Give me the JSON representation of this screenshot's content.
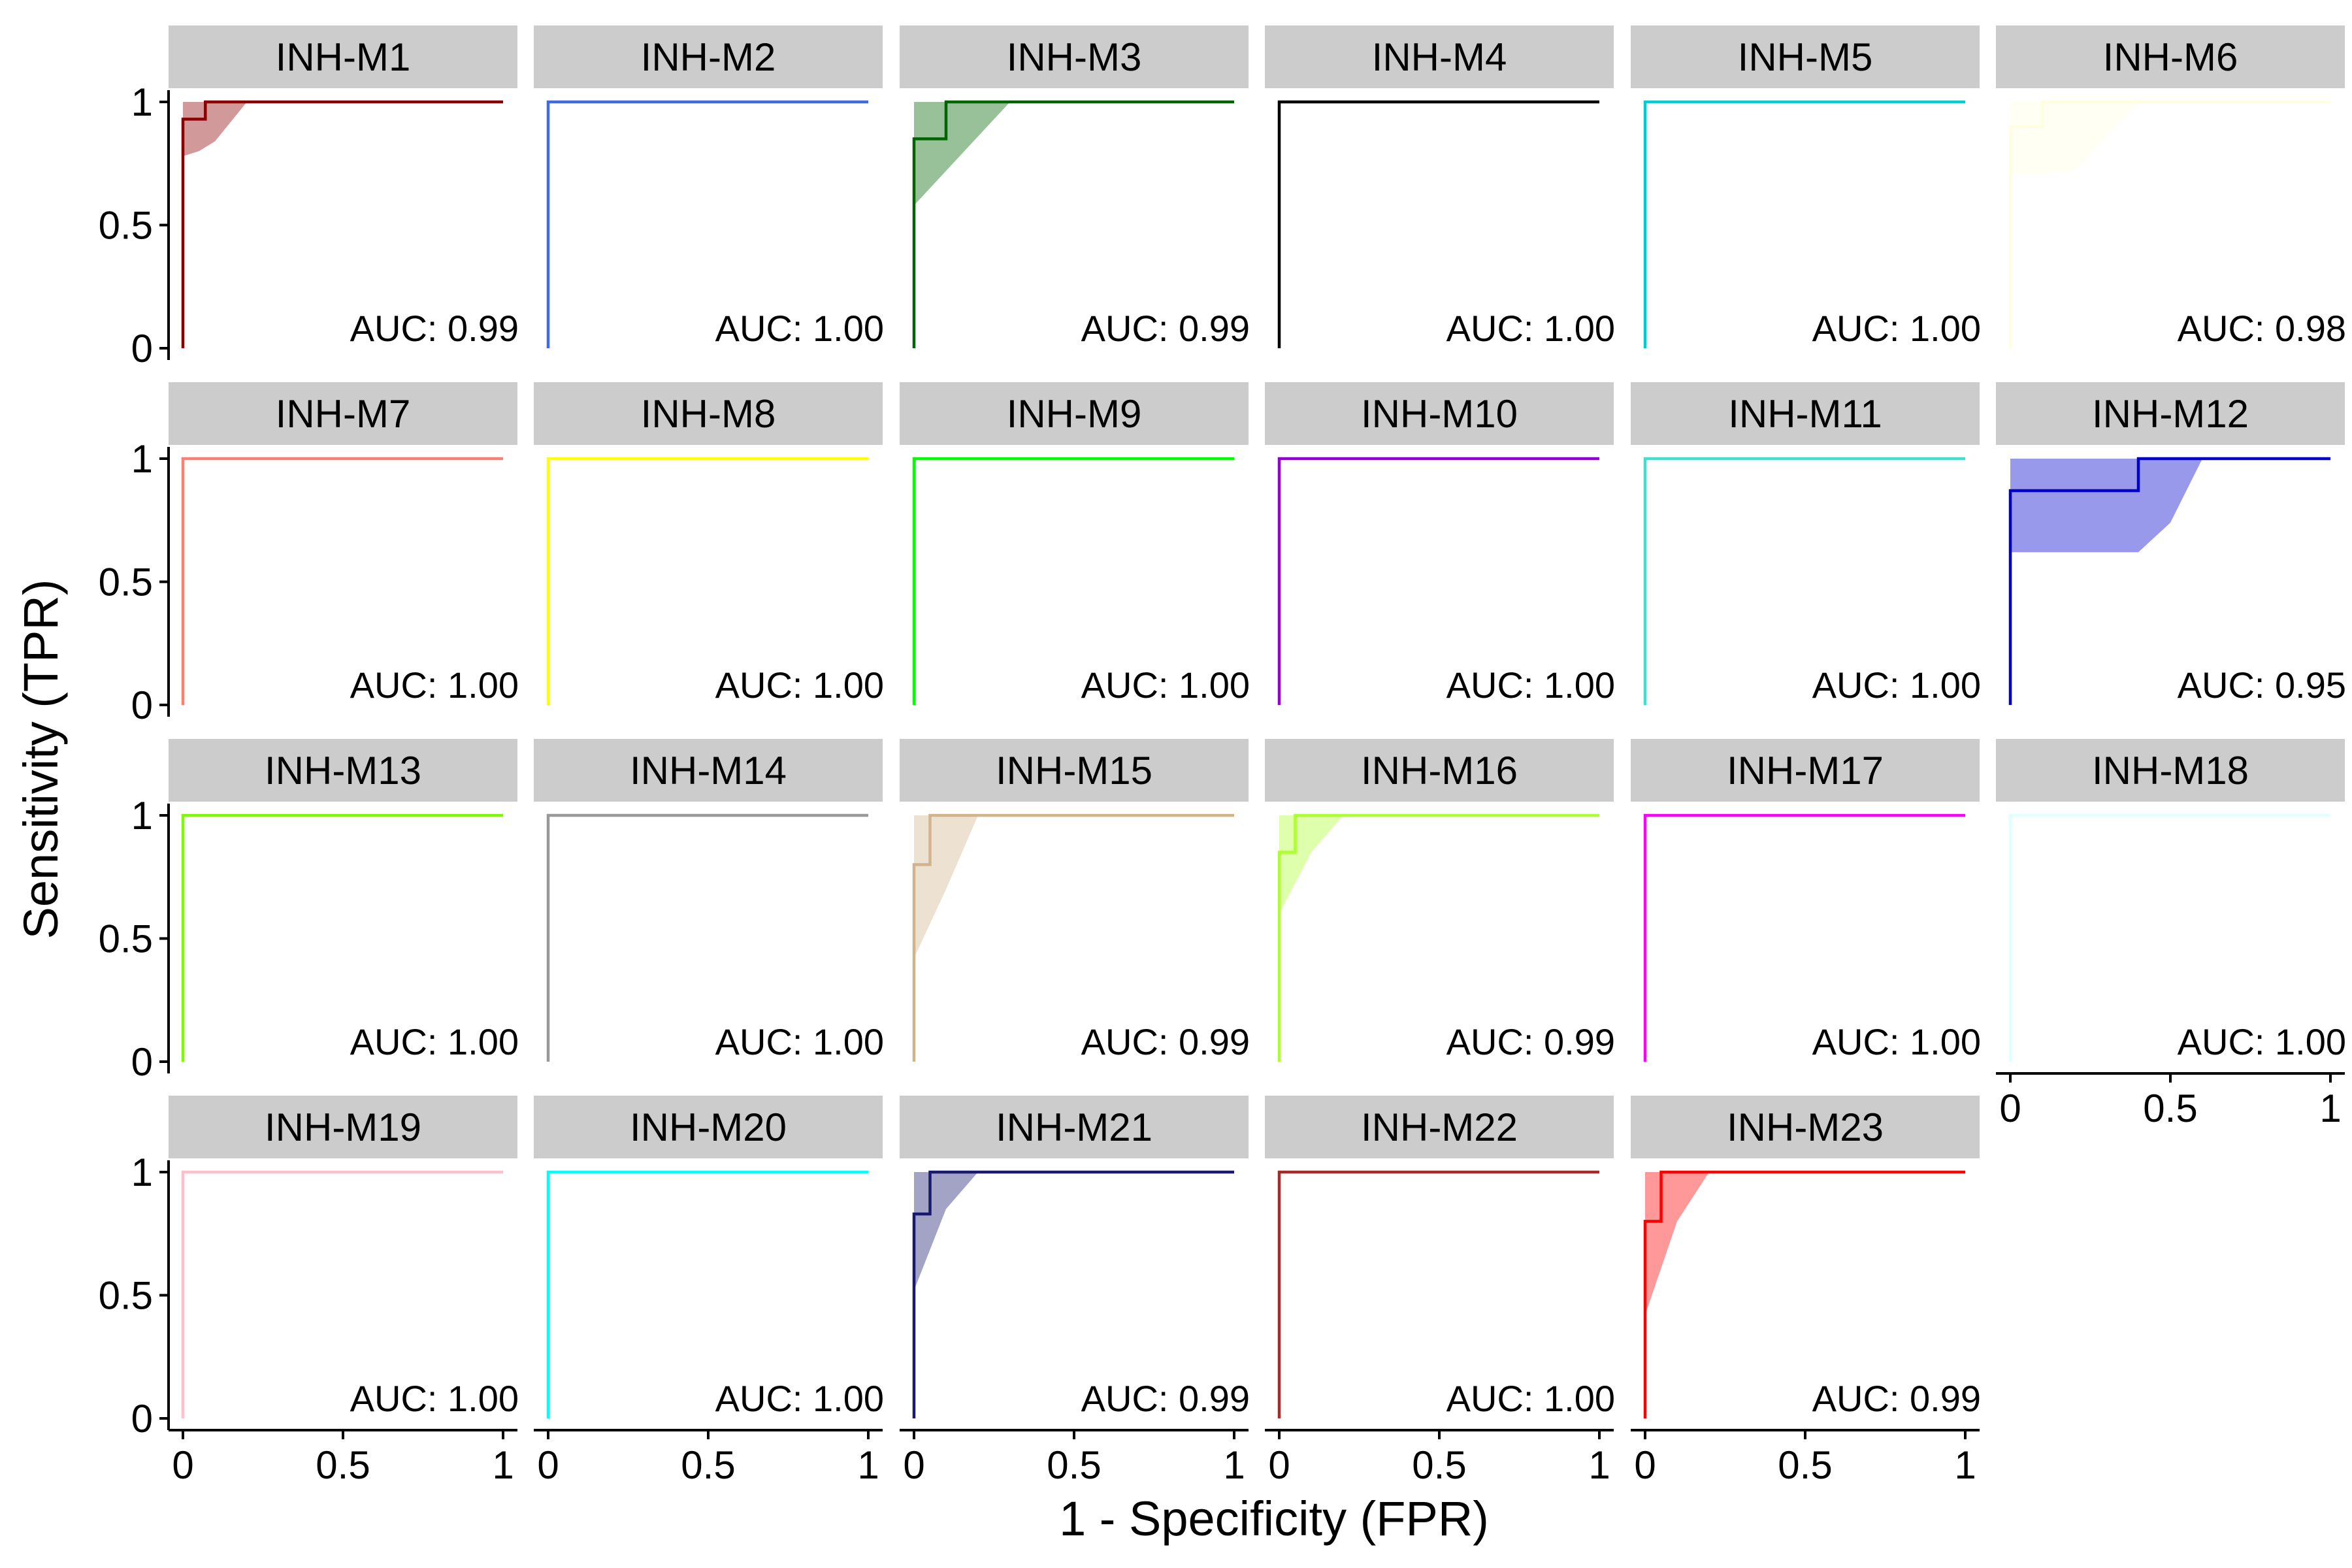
{
  "chart_data": {
    "type": "line",
    "xlabel": "1 - Specificity (FPR)",
    "ylabel": "Sensitivity (TPR)",
    "xlim": [
      0,
      1
    ],
    "ylim": [
      0,
      1
    ],
    "x_ticks": [
      "0",
      "0.5",
      "1"
    ],
    "y_ticks": [
      "0",
      "0.5",
      "1"
    ],
    "auc_prefix": "AUC: ",
    "panels": [
      {
        "name": "INH-M1",
        "color": "#8B0000",
        "auc": "0.99",
        "roc": [
          [
            0,
            0
          ],
          [
            0,
            0.93
          ],
          [
            0.07,
            0.93
          ],
          [
            0.07,
            1
          ],
          [
            1,
            1
          ]
        ],
        "band_upper": [
          [
            0,
            1
          ],
          [
            1,
            1
          ]
        ],
        "band_lower": [
          [
            0,
            0.78
          ],
          [
            0.05,
            0.8
          ],
          [
            0.1,
            0.84
          ],
          [
            0.2,
            1
          ],
          [
            1,
            1
          ]
        ]
      },
      {
        "name": "INH-M2",
        "color": "#4169E1",
        "auc": "1.00",
        "roc": [
          [
            0,
            0
          ],
          [
            0,
            1
          ],
          [
            1,
            1
          ]
        ],
        "band_upper": [],
        "band_lower": []
      },
      {
        "name": "INH-M3",
        "color": "#006400",
        "auc": "0.99",
        "roc": [
          [
            0,
            0
          ],
          [
            0,
            0.85
          ],
          [
            0.1,
            0.85
          ],
          [
            0.1,
            1
          ],
          [
            1,
            1
          ]
        ],
        "band_upper": [
          [
            0,
            1
          ],
          [
            1,
            1
          ]
        ],
        "band_lower": [
          [
            0,
            0.58
          ],
          [
            0.3,
            1
          ],
          [
            1,
            1
          ]
        ]
      },
      {
        "name": "INH-M4",
        "color": "#000000",
        "auc": "1.00",
        "roc": [
          [
            0,
            0
          ],
          [
            0,
            1
          ],
          [
            1,
            1
          ]
        ],
        "band_upper": [],
        "band_lower": []
      },
      {
        "name": "INH-M5",
        "color": "#00CED1",
        "auc": "1.00",
        "roc": [
          [
            0,
            0
          ],
          [
            0,
            1
          ],
          [
            1,
            1
          ]
        ],
        "band_upper": [],
        "band_lower": []
      },
      {
        "name": "INH-M6",
        "color": "#FFFFE0",
        "auc": "0.98",
        "roc": [
          [
            0,
            0
          ],
          [
            0,
            0.9
          ],
          [
            0.1,
            0.9
          ],
          [
            0.1,
            1
          ],
          [
            1,
            1
          ]
        ],
        "band_upper": [
          [
            0,
            1
          ],
          [
            1,
            1
          ]
        ],
        "band_lower": [
          [
            0,
            0.7
          ],
          [
            0.2,
            0.72
          ],
          [
            0.4,
            1
          ],
          [
            1,
            1
          ]
        ]
      },
      {
        "name": "INH-M7",
        "color": "#FA8072",
        "auc": "1.00",
        "roc": [
          [
            0,
            0
          ],
          [
            0,
            1
          ],
          [
            1,
            1
          ]
        ],
        "band_upper": [],
        "band_lower": []
      },
      {
        "name": "INH-M8",
        "color": "#FFFF00",
        "auc": "1.00",
        "roc": [
          [
            0,
            0
          ],
          [
            0,
            1
          ],
          [
            1,
            1
          ]
        ],
        "band_upper": [],
        "band_lower": []
      },
      {
        "name": "INH-M9",
        "color": "#00FF00",
        "auc": "1.00",
        "roc": [
          [
            0,
            0
          ],
          [
            0,
            1
          ],
          [
            1,
            1
          ]
        ],
        "band_upper": [],
        "band_lower": []
      },
      {
        "name": "INH-M10",
        "color": "#9400D3",
        "auc": "1.00",
        "roc": [
          [
            0,
            0
          ],
          [
            0,
            1
          ],
          [
            1,
            1
          ]
        ],
        "band_upper": [],
        "band_lower": []
      },
      {
        "name": "INH-M11",
        "color": "#40E0D0",
        "auc": "1.00",
        "roc": [
          [
            0,
            0
          ],
          [
            0,
            1
          ],
          [
            1,
            1
          ]
        ],
        "band_upper": [],
        "band_lower": []
      },
      {
        "name": "INH-M12",
        "color": "#0000CD",
        "auc": "0.95",
        "roc": [
          [
            0,
            0
          ],
          [
            0,
            0.87
          ],
          [
            0.4,
            0.87
          ],
          [
            0.4,
            1
          ],
          [
            1,
            1
          ]
        ],
        "band_upper": [
          [
            0,
            1
          ],
          [
            1,
            1
          ]
        ],
        "band_lower": [
          [
            0,
            0.62
          ],
          [
            0.4,
            0.62
          ],
          [
            0.5,
            0.74
          ],
          [
            0.6,
            1
          ],
          [
            1,
            1
          ]
        ]
      },
      {
        "name": "INH-M13",
        "color": "#7CFC00",
        "auc": "1.00",
        "roc": [
          [
            0,
            0
          ],
          [
            0,
            1
          ],
          [
            1,
            1
          ]
        ],
        "band_upper": [],
        "band_lower": []
      },
      {
        "name": "INH-M14",
        "color": "#999999",
        "auc": "1.00",
        "roc": [
          [
            0,
            0
          ],
          [
            0,
            1
          ],
          [
            1,
            1
          ]
        ],
        "band_upper": [],
        "band_lower": []
      },
      {
        "name": "INH-M15",
        "color": "#D2B48C",
        "auc": "0.99",
        "roc": [
          [
            0,
            0
          ],
          [
            0,
            0.8
          ],
          [
            0.05,
            0.8
          ],
          [
            0.05,
            1
          ],
          [
            1,
            1
          ]
        ],
        "band_upper": [
          [
            0,
            1
          ],
          [
            1,
            1
          ]
        ],
        "band_lower": [
          [
            0,
            0.42
          ],
          [
            0.1,
            0.7
          ],
          [
            0.2,
            1
          ],
          [
            1,
            1
          ]
        ]
      },
      {
        "name": "INH-M16",
        "color": "#ADFF2F",
        "auc": "0.99",
        "roc": [
          [
            0,
            0
          ],
          [
            0,
            0.85
          ],
          [
            0.05,
            0.85
          ],
          [
            0.05,
            1
          ],
          [
            1,
            1
          ]
        ],
        "band_upper": [
          [
            0,
            1
          ],
          [
            1,
            1
          ]
        ],
        "band_lower": [
          [
            0,
            0.6
          ],
          [
            0.1,
            0.85
          ],
          [
            0.2,
            1
          ],
          [
            1,
            1
          ]
        ]
      },
      {
        "name": "INH-M17",
        "color": "#FF00FF",
        "auc": "1.00",
        "roc": [
          [
            0,
            0
          ],
          [
            0,
            1
          ],
          [
            1,
            1
          ]
        ],
        "band_upper": [],
        "band_lower": []
      },
      {
        "name": "INH-M18",
        "color": "#E0FFFF",
        "auc": "1.00",
        "roc": [
          [
            0,
            0
          ],
          [
            0,
            1
          ],
          [
            1,
            1
          ]
        ],
        "band_upper": [],
        "band_lower": []
      },
      {
        "name": "INH-M19",
        "color": "#FFC0CB",
        "auc": "1.00",
        "roc": [
          [
            0,
            0
          ],
          [
            0,
            1
          ],
          [
            1,
            1
          ]
        ],
        "band_upper": [],
        "band_lower": []
      },
      {
        "name": "INH-M20",
        "color": "#00FFFF",
        "auc": "1.00",
        "roc": [
          [
            0,
            0
          ],
          [
            0,
            1
          ],
          [
            1,
            1
          ]
        ],
        "band_upper": [],
        "band_lower": []
      },
      {
        "name": "INH-M21",
        "color": "#191970",
        "auc": "0.99",
        "roc": [
          [
            0,
            0
          ],
          [
            0,
            0.83
          ],
          [
            0.05,
            0.83
          ],
          [
            0.05,
            1
          ],
          [
            1,
            1
          ]
        ],
        "band_upper": [
          [
            0,
            1
          ],
          [
            1,
            1
          ]
        ],
        "band_lower": [
          [
            0,
            0.52
          ],
          [
            0.1,
            0.85
          ],
          [
            0.2,
            1
          ],
          [
            1,
            1
          ]
        ]
      },
      {
        "name": "INH-M22",
        "color": "#A52A2A",
        "auc": "1.00",
        "roc": [
          [
            0,
            0
          ],
          [
            0,
            1
          ],
          [
            1,
            1
          ]
        ],
        "band_upper": [],
        "band_lower": []
      },
      {
        "name": "INH-M23",
        "color": "#FF0000",
        "auc": "0.99",
        "roc": [
          [
            0,
            0
          ],
          [
            0,
            0.8
          ],
          [
            0.05,
            0.8
          ],
          [
            0.05,
            1
          ],
          [
            1,
            1
          ]
        ],
        "band_upper": [
          [
            0,
            1
          ],
          [
            1,
            1
          ]
        ],
        "band_lower": [
          [
            0,
            0.42
          ],
          [
            0.1,
            0.8
          ],
          [
            0.2,
            1
          ],
          [
            1,
            1
          ]
        ]
      }
    ]
  }
}
